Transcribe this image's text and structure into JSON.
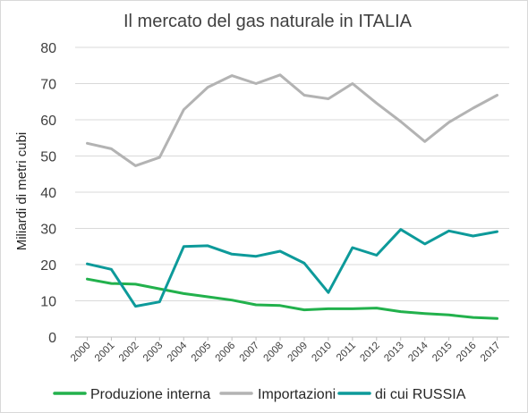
{
  "chart_data": {
    "type": "line",
    "title": "Il mercato del gas naturale in ITALIA",
    "ylabel": "Miliardi di metri cubi",
    "xlabel": "",
    "ylim": [
      0,
      80
    ],
    "yticks": [
      0,
      10,
      20,
      30,
      40,
      50,
      60,
      70,
      80
    ],
    "grid": "horizontal",
    "legend_position": "bottom",
    "categories": [
      "2000",
      "2001",
      "2002",
      "2003",
      "2004",
      "2005",
      "2006",
      "2007",
      "2008",
      "2009",
      "2010",
      "2011",
      "2012",
      "2013",
      "2014",
      "2015",
      "2016",
      "2017"
    ],
    "series": [
      {
        "name": "Produzione interna",
        "color": "#22b14c",
        "values": [
          16.0,
          14.8,
          14.6,
          13.3,
          12.0,
          11.1,
          10.2,
          8.9,
          8.7,
          7.5,
          7.8,
          7.8,
          8.0,
          7.0,
          6.5,
          6.1,
          5.4,
          5.1
        ]
      },
      {
        "name": "Importazioni",
        "color": "#b3b3b3",
        "values": [
          53.5,
          52.0,
          47.3,
          49.6,
          62.8,
          69.0,
          72.2,
          70.0,
          72.4,
          66.8,
          65.8,
          70.0,
          64.6,
          59.5,
          54.0,
          59.3,
          63.2,
          66.8
        ]
      },
      {
        "name": "di cui RUSSIA",
        "color": "#0d9a9a",
        "values": [
          20.2,
          18.7,
          8.5,
          9.7,
          25.0,
          25.2,
          22.9,
          22.3,
          23.7,
          20.4,
          12.3,
          24.7,
          22.6,
          29.7,
          25.7,
          29.3,
          27.9,
          29.1
        ]
      }
    ]
  }
}
